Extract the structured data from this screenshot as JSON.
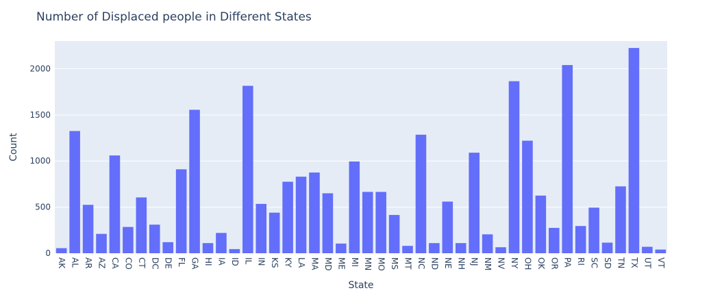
{
  "chart_data": {
    "type": "bar",
    "title": "Number of Displaced people in Different States",
    "xlabel": "State",
    "ylabel": "Count",
    "ylim": [
      0,
      2300
    ],
    "yticks": [
      0,
      500,
      1000,
      1500,
      2000
    ],
    "categories": [
      "AK",
      "AL",
      "AR",
      "AZ",
      "CA",
      "CO",
      "CT",
      "DC",
      "DE",
      "FL",
      "GA",
      "HI",
      "IA",
      "ID",
      "IL",
      "IN",
      "KS",
      "KY",
      "LA",
      "MA",
      "MD",
      "ME",
      "MI",
      "MN",
      "MO",
      "MS",
      "MT",
      "NC",
      "ND",
      "NE",
      "NH",
      "NJ",
      "NM",
      "NV",
      "NY",
      "OH",
      "OK",
      "OR",
      "PA",
      "RI",
      "SC",
      "SD",
      "TN",
      "TX",
      "UT",
      "VT"
    ],
    "values": [
      55,
      1325,
      525,
      210,
      1060,
      285,
      605,
      310,
      120,
      910,
      1555,
      110,
      220,
      45,
      1815,
      535,
      440,
      775,
      830,
      875,
      650,
      105,
      995,
      665,
      665,
      415,
      80,
      1285,
      110,
      560,
      110,
      1090,
      205,
      65,
      1865,
      1220,
      625,
      275,
      2040,
      295,
      495,
      115,
      725,
      2225,
      70,
      40
    ],
    "grid": true,
    "colors": {
      "bar": "#636efa",
      "plot_bg": "#e5ecf6",
      "grid": "#ffffff",
      "text": "#2a3f5f"
    }
  }
}
